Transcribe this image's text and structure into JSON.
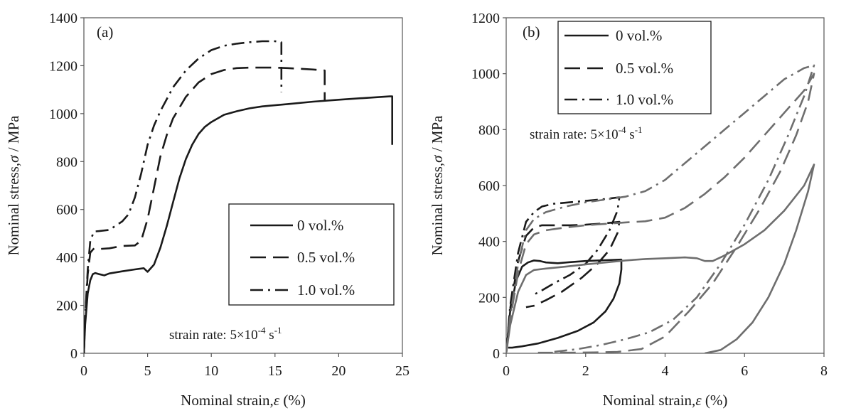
{
  "chart_data": [
    {
      "type": "line",
      "panel_label": "(a)",
      "xlabel": "Nominal strain,",
      "xlabel_symbol": "ε",
      "xlabel_unit": " (%)",
      "ylabel": "Nominal stress,",
      "ylabel_symbol": "σ",
      "ylabel_unit": " / MPa",
      "xlim": [
        0,
        25
      ],
      "ylim": [
        0,
        1400
      ],
      "xticks": [
        0,
        5,
        10,
        15,
        20,
        25
      ],
      "yticks": [
        0,
        200,
        400,
        600,
        800,
        1000,
        1200,
        1400
      ],
      "grid": false,
      "legend_position": "lower-right",
      "annotation": {
        "prefix": "strain rate: 5×10",
        "exponent": "-4",
        "suffix": " s",
        "suffix_exponent": "-1"
      },
      "series": [
        {
          "name": "0 vol.%",
          "dash": "solid",
          "color": "#1a1a1a",
          "x": [
            0,
            0.1,
            0.3,
            0.5,
            0.7,
            0.9,
            1.2,
            1.6,
            2,
            3,
            4,
            4.7,
            5.0,
            5.5,
            6,
            6.5,
            7,
            7.5,
            8,
            8.5,
            9,
            9.5,
            10,
            11,
            12,
            13,
            14,
            16,
            18,
            20,
            22,
            24,
            24.2,
            24.2
          ],
          "y": [
            0,
            120,
            250,
            305,
            330,
            335,
            330,
            325,
            333,
            342,
            350,
            355,
            340,
            370,
            440,
            530,
            630,
            730,
            810,
            870,
            915,
            945,
            965,
            995,
            1010,
            1022,
            1030,
            1040,
            1050,
            1058,
            1065,
            1072,
            1072,
            870
          ]
        },
        {
          "name": "0.5 vol.%",
          "dash": "long-dash",
          "color": "#1a1a1a",
          "x": [
            0,
            0.1,
            0.3,
            0.5,
            0.8,
            1.2,
            2,
            3,
            4,
            4.5,
            5,
            5.5,
            6,
            6.5,
            7,
            8,
            9,
            10,
            11,
            12,
            13,
            14,
            15,
            16,
            17,
            18,
            18.9,
            18.9
          ],
          "y": [
            0,
            150,
            330,
            420,
            438,
            435,
            438,
            448,
            450,
            470,
            560,
            690,
            820,
            910,
            980,
            1070,
            1130,
            1165,
            1182,
            1190,
            1192,
            1192,
            1192,
            1190,
            1187,
            1184,
            1180,
            1050
          ]
        },
        {
          "name": "1.0 vol.%",
          "dash": "dash-dot",
          "color": "#1a1a1a",
          "x": [
            0,
            0.1,
            0.3,
            0.5,
            0.8,
            1.2,
            2,
            3,
            3.5,
            4,
            4.5,
            5,
            5.5,
            6,
            6.5,
            7,
            8,
            9,
            10,
            11,
            12,
            13,
            14,
            15,
            15.5,
            15.5
          ],
          "y": [
            0,
            150,
            350,
            470,
            508,
            510,
            515,
            550,
            580,
            650,
            750,
            870,
            950,
            1010,
            1060,
            1110,
            1180,
            1230,
            1265,
            1283,
            1292,
            1298,
            1302,
            1302,
            1298,
            1090
          ]
        }
      ]
    },
    {
      "type": "line",
      "panel_label": "(b)",
      "xlabel": "Nominal strain,",
      "xlabel_symbol": "ε",
      "xlabel_unit": " (%)",
      "ylabel": "Nominal stress,",
      "ylabel_symbol": "σ",
      "ylabel_unit": " / MPa",
      "xlim": [
        0,
        8
      ],
      "ylim": [
        0,
        1200
      ],
      "xticks": [
        0,
        2,
        4,
        6,
        8
      ],
      "yticks": [
        0,
        200,
        400,
        600,
        800,
        1000,
        1200
      ],
      "grid": false,
      "legend_position": "top-left",
      "annotation": {
        "prefix": "strain rate: 5×10",
        "exponent": "-4",
        "suffix": " s",
        "suffix_exponent": "-1"
      },
      "legend": [
        {
          "name": "0 vol.%",
          "dash": "solid"
        },
        {
          "name": "0.5 vol.%",
          "dash": "long-dash"
        },
        {
          "name": "1.0 vol.%",
          "dash": "dash-dot"
        }
      ],
      "series": [
        {
          "name": "0 vol.%",
          "cycle": 1,
          "dash": "solid",
          "color": "#1a1a1a",
          "x": [
            0,
            0.1,
            0.25,
            0.4,
            0.55,
            0.7,
            0.85,
            1.0,
            1.3,
            1.6,
            2.0,
            2.5,
            2.9,
            2.9,
            2.85,
            2.7,
            2.5,
            2.2,
            1.8,
            1.3,
            0.8,
            0.4,
            0.15,
            0.05
          ],
          "y": [
            0,
            150,
            260,
            310,
            325,
            332,
            330,
            325,
            322,
            326,
            330,
            333,
            335,
            300,
            250,
            195,
            150,
            110,
            80,
            55,
            35,
            25,
            20,
            20
          ]
        },
        {
          "name": "0.5 vol.%",
          "cycle": 1,
          "dash": "long-dash",
          "color": "#1a1a1a",
          "x": [
            0,
            0.1,
            0.3,
            0.5,
            0.7,
            0.9,
            1.2,
            1.6,
            2.0,
            2.5,
            2.85,
            2.8,
            2.6,
            2.3,
            1.9,
            1.4,
            1.0,
            0.7,
            0.5
          ],
          "y": [
            0,
            160,
            330,
            420,
            450,
            458,
            458,
            458,
            460,
            465,
            470,
            430,
            370,
            320,
            270,
            220,
            190,
            170,
            165
          ]
        },
        {
          "name": "1.0 vol.%",
          "cycle": 1,
          "dash": "dash-dot",
          "color": "#1a1a1a",
          "x": [
            0,
            0.1,
            0.3,
            0.5,
            0.7,
            0.9,
            1.2,
            1.6,
            2.0,
            2.5,
            2.85,
            2.8,
            2.6,
            2.3,
            2.0,
            1.6,
            1.2,
            0.9,
            0.7
          ],
          "y": [
            0,
            170,
            360,
            470,
            505,
            525,
            535,
            540,
            545,
            552,
            558,
            510,
            440,
            370,
            320,
            280,
            250,
            225,
            210
          ]
        },
        {
          "name": "0 vol.%",
          "cycle": 2,
          "dash": "solid",
          "color": "#6e6e6e",
          "x": [
            0,
            0.1,
            0.3,
            0.5,
            0.7,
            1.0,
            1.5,
            2,
            2.5,
            3,
            3.5,
            4,
            4.5,
            4.8,
            5.0,
            5.2,
            5.5,
            6,
            6.5,
            7,
            7.5,
            7.75,
            7.75,
            7.6,
            7.3,
            7.0,
            6.6,
            6.2,
            5.8,
            5.4,
            5.0
          ],
          "y": [
            0,
            100,
            220,
            280,
            298,
            303,
            310,
            318,
            325,
            332,
            337,
            340,
            343,
            340,
            330,
            330,
            350,
            390,
            440,
            510,
            600,
            675,
            675,
            580,
            440,
            320,
            200,
            110,
            50,
            12,
            0
          ]
        },
        {
          "name": "0.5 vol.%",
          "cycle": 2,
          "dash": "long-dash",
          "color": "#6e6e6e",
          "x": [
            0,
            0.1,
            0.3,
            0.5,
            0.7,
            1.0,
            1.5,
            2,
            2.5,
            3,
            3.5,
            4,
            4.5,
            5,
            5.5,
            6,
            6.5,
            7,
            7.5,
            7.75,
            7.75,
            7.6,
            7.3,
            6.9,
            6.4,
            5.8,
            5.2,
            4.6,
            4.0,
            3.4,
            2.8,
            2.2,
            1.5,
            0.8
          ],
          "y": [
            0,
            120,
            290,
            390,
            425,
            440,
            450,
            458,
            463,
            468,
            472,
            485,
            520,
            570,
            630,
            700,
            780,
            860,
            940,
            1000,
            1000,
            900,
            780,
            650,
            520,
            380,
            250,
            150,
            60,
            15,
            5,
            3,
            2,
            2
          ]
        },
        {
          "name": "1.0 vol.%",
          "cycle": 2,
          "dash": "dash-dot",
          "color": "#6e6e6e",
          "x": [
            0,
            0.1,
            0.3,
            0.5,
            0.7,
            1.0,
            1.5,
            2,
            2.5,
            3,
            3.5,
            4,
            4.5,
            5,
            5.5,
            6,
            6.5,
            7,
            7.5,
            7.75,
            7.75,
            7.5,
            7.1,
            6.6,
            6.0,
            5.4,
            4.8,
            4.2,
            3.6,
            3.0,
            2.4,
            1.8,
            1.2
          ],
          "y": [
            0,
            130,
            320,
            440,
            480,
            505,
            525,
            540,
            550,
            560,
            580,
            620,
            680,
            740,
            800,
            860,
            920,
            980,
            1020,
            1030,
            1030,
            920,
            780,
            620,
            460,
            320,
            200,
            120,
            75,
            50,
            30,
            15,
            5
          ]
        }
      ]
    }
  ]
}
